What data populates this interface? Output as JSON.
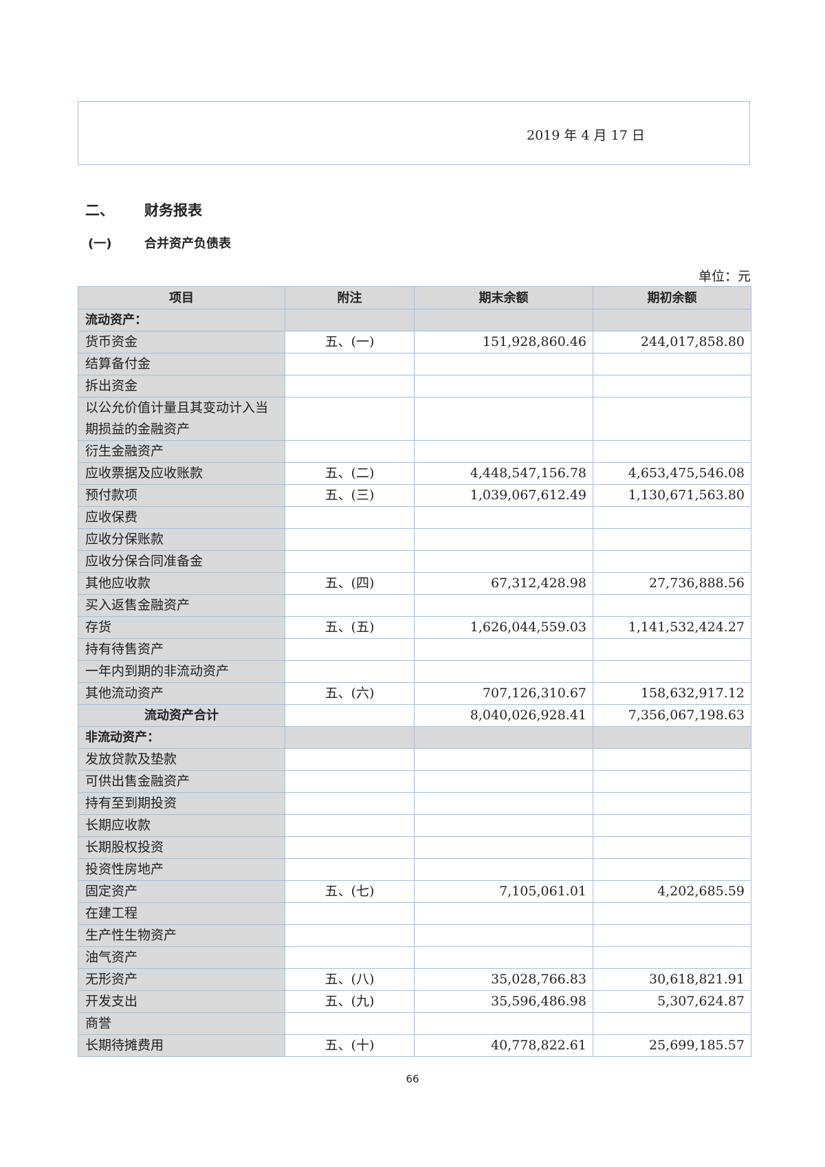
{
  "signature_box": {
    "date": "2019 年 4 月 17 日"
  },
  "section": {
    "number": "二、",
    "title": "财务报表"
  },
  "subsection": {
    "number": "(一)",
    "title": "合并资产负债表"
  },
  "unit": "单位：元",
  "table": {
    "headers": [
      "项目",
      "附注",
      "期末余额",
      "期初余额"
    ],
    "rows": [
      {
        "type": "section",
        "label": "流动资产：",
        "note": "",
        "end": "",
        "begin": ""
      },
      {
        "label": "货币资金",
        "note": "五、(一)",
        "end": "151,928,860.46",
        "begin": "244,017,858.80"
      },
      {
        "label": "结算备付金",
        "note": "",
        "end": "",
        "begin": ""
      },
      {
        "label": "拆出资金",
        "note": "",
        "end": "",
        "begin": ""
      },
      {
        "type": "double",
        "label": "以公允价值计量且其变动计入当期损益的金融资产",
        "note": "",
        "end": "",
        "begin": ""
      },
      {
        "label": "衍生金融资产",
        "note": "",
        "end": "",
        "begin": ""
      },
      {
        "label": "应收票据及应收账款",
        "note": "五、(二)",
        "end": "4,448,547,156.78",
        "begin": "4,653,475,546.08"
      },
      {
        "label": "预付款项",
        "note": "五、(三)",
        "end": "1,039,067,612.49",
        "begin": "1,130,671,563.80"
      },
      {
        "label": "应收保费",
        "note": "",
        "end": "",
        "begin": ""
      },
      {
        "label": "应收分保账款",
        "note": "",
        "end": "",
        "begin": ""
      },
      {
        "label": "应收分保合同准备金",
        "note": "",
        "end": "",
        "begin": ""
      },
      {
        "label": "其他应收款",
        "note": "五、(四)",
        "end": "67,312,428.98",
        "begin": "27,736,888.56"
      },
      {
        "label": "买入返售金融资产",
        "note": "",
        "end": "",
        "begin": ""
      },
      {
        "label": "存货",
        "note": "五、(五)",
        "end": "1,626,044,559.03",
        "begin": "1,141,532,424.27"
      },
      {
        "label": "持有待售资产",
        "note": "",
        "end": "",
        "begin": ""
      },
      {
        "label": "一年内到期的非流动资产",
        "note": "",
        "end": "",
        "begin": ""
      },
      {
        "label": "其他流动资产",
        "note": "五、(六)",
        "end": "707,126,310.67",
        "begin": "158,632,917.12"
      },
      {
        "type": "total",
        "label": "流动资产合计",
        "note": "",
        "end": "8,040,026,928.41",
        "begin": "7,356,067,198.63"
      },
      {
        "type": "section",
        "label": "非流动资产：",
        "note": "",
        "end": "",
        "begin": ""
      },
      {
        "label": "发放贷款及垫款",
        "note": "",
        "end": "",
        "begin": ""
      },
      {
        "label": "可供出售金融资产",
        "note": "",
        "end": "",
        "begin": ""
      },
      {
        "label": "持有至到期投资",
        "note": "",
        "end": "",
        "begin": ""
      },
      {
        "label": "长期应收款",
        "note": "",
        "end": "",
        "begin": ""
      },
      {
        "label": "长期股权投资",
        "note": "",
        "end": "",
        "begin": ""
      },
      {
        "label": "投资性房地产",
        "note": "",
        "end": "",
        "begin": ""
      },
      {
        "label": "固定资产",
        "note": "五、(七)",
        "end": "7,105,061.01",
        "begin": "4,202,685.59"
      },
      {
        "label": "在建工程",
        "note": "",
        "end": "",
        "begin": ""
      },
      {
        "label": "生产性生物资产",
        "note": "",
        "end": "",
        "begin": ""
      },
      {
        "label": "油气资产",
        "note": "",
        "end": "",
        "begin": ""
      },
      {
        "label": "无形资产",
        "note": "五、(八)",
        "end": "35,028,766.83",
        "begin": "30,618,821.91"
      },
      {
        "label": "开发支出",
        "note": "五、(九)",
        "end": "35,596,486.98",
        "begin": "5,307,624.87"
      },
      {
        "label": "商誉",
        "note": "",
        "end": "",
        "begin": ""
      },
      {
        "label": "长期待摊费用",
        "note": "五、(十)",
        "end": "40,778,822.61",
        "begin": "25,699,185.57"
      }
    ]
  },
  "page_number": "66"
}
